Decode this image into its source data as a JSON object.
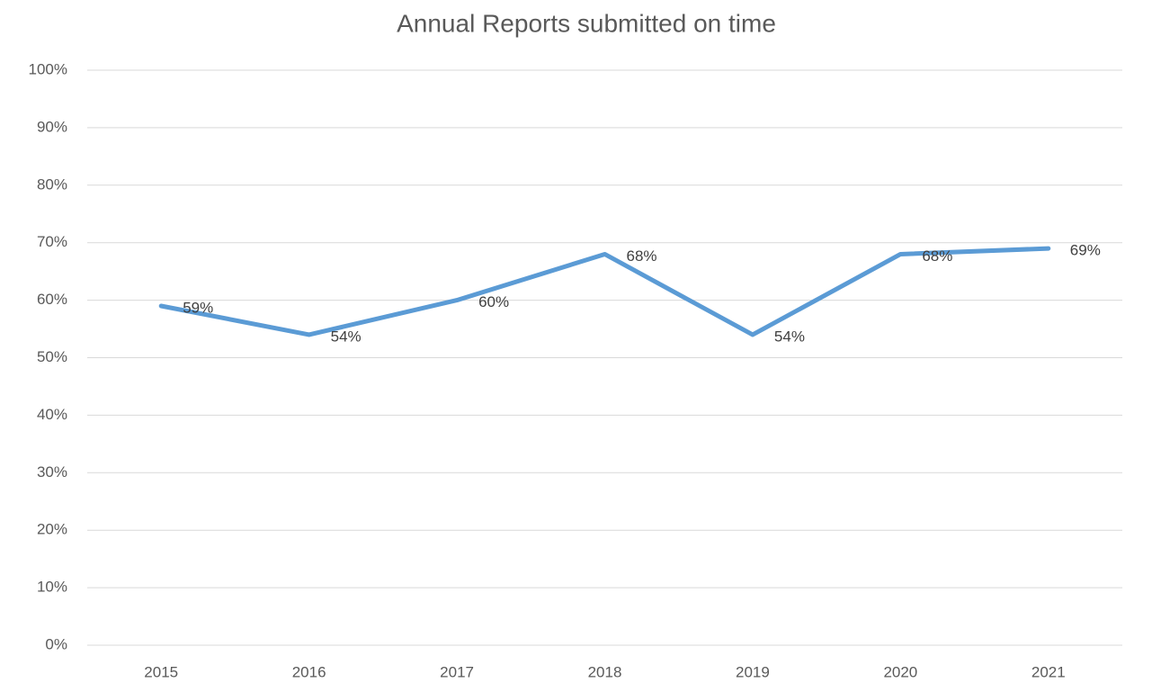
{
  "chart_data": {
    "type": "line",
    "title": "Annual Reports submitted on time",
    "categories": [
      "2015",
      "2016",
      "2017",
      "2018",
      "2019",
      "2020",
      "2021"
    ],
    "series": [
      {
        "name": "Annual Reports submitted on time",
        "color": "#5b9bd5",
        "values": [
          59,
          54,
          60,
          68,
          54,
          68,
          69
        ],
        "value_labels": [
          "59%",
          "54%",
          "60%",
          "68%",
          "54%",
          "68%",
          "69%"
        ]
      }
    ],
    "ylim": [
      0,
      100
    ],
    "yticks": [
      {
        "value": 0,
        "label": "0%"
      },
      {
        "value": 10,
        "label": "10%"
      },
      {
        "value": 20,
        "label": "20%"
      },
      {
        "value": 30,
        "label": "30%"
      },
      {
        "value": 40,
        "label": "40%"
      },
      {
        "value": 50,
        "label": "50%"
      },
      {
        "value": 60,
        "label": "60%"
      },
      {
        "value": 70,
        "label": "70%"
      },
      {
        "value": 80,
        "label": "80%"
      },
      {
        "value": 90,
        "label": "90%"
      },
      {
        "value": 100,
        "label": "100%"
      }
    ],
    "grid": true
  }
}
